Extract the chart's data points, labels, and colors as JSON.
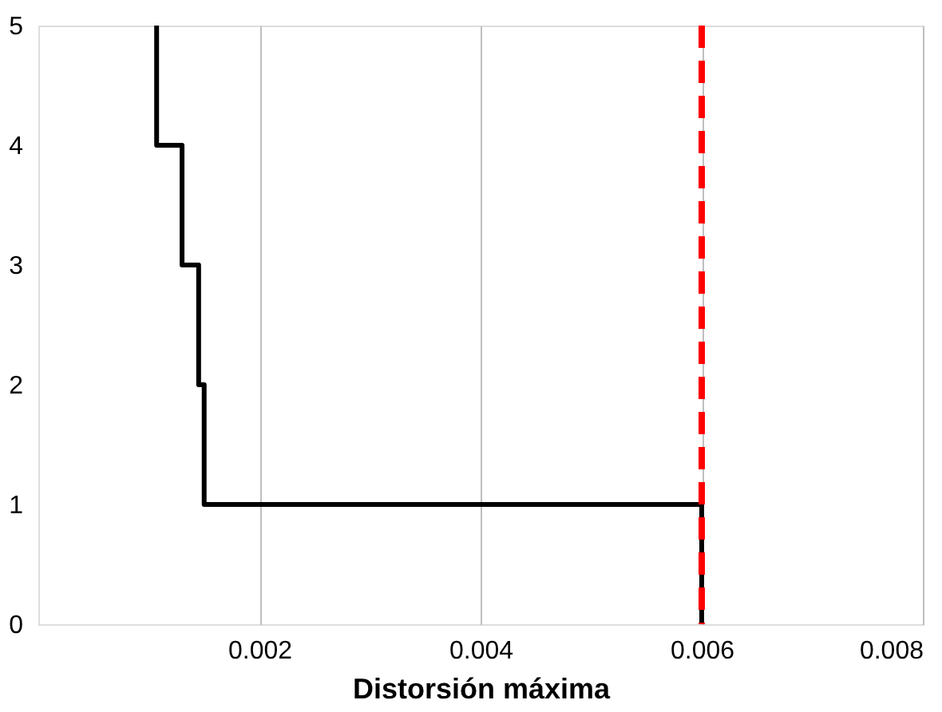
{
  "chart_data": {
    "type": "line",
    "xlabel": "Distorsión máxima",
    "x": [
      0.006,
      0.006,
      0.0015,
      0.0015,
      0.00145,
      0.00145,
      0.0013,
      0.0013,
      0.00107,
      0.00107
    ],
    "series": [
      {
        "color": "#000000",
        "values": [
          0,
          1,
          1,
          2,
          2,
          3,
          3,
          4,
          4,
          5
        ]
      }
    ],
    "xlim": [
      0,
      0.008
    ],
    "xticks": [
      0.002,
      0.004,
      0.006,
      0.008
    ],
    "ylim": [
      0,
      5
    ],
    "yticks": [
      0,
      1,
      2,
      3,
      4,
      5
    ],
    "grid": "x",
    "marker": "none",
    "line_style": "solid",
    "ref_lines": [
      {
        "axis": "x",
        "value": 0.006,
        "color": "#ff0000",
        "line_style": "dashed"
      }
    ]
  }
}
